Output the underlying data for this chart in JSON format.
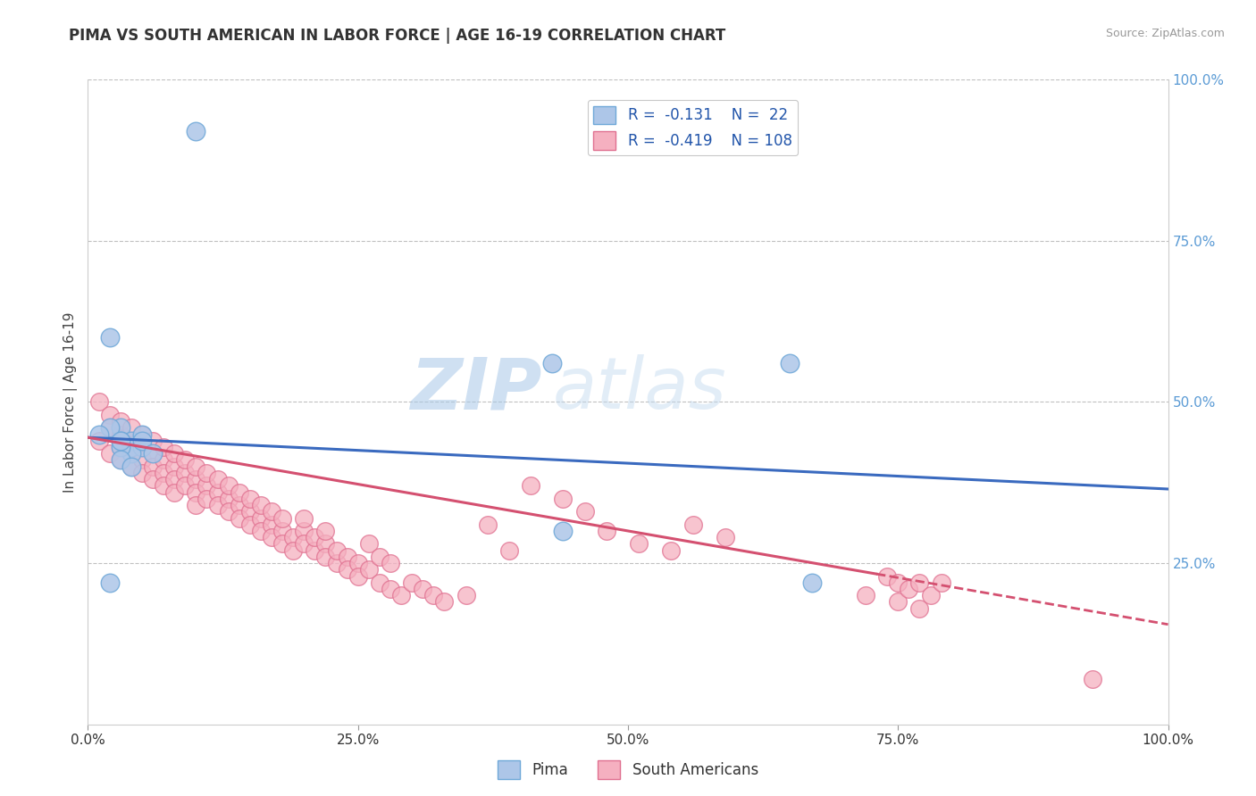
{
  "title": "PIMA VS SOUTH AMERICAN IN LABOR FORCE | AGE 16-19 CORRELATION CHART",
  "source_text": "Source: ZipAtlas.com",
  "ylabel": "In Labor Force | Age 16-19",
  "xlim": [
    0,
    1
  ],
  "ylim": [
    0,
    1
  ],
  "x_ticks": [
    0,
    0.25,
    0.5,
    0.75,
    1.0
  ],
  "x_tick_labels": [
    "0.0%",
    "25.0%",
    "50.0%",
    "75.0%",
    "100.0%"
  ],
  "y_ticks": [
    0.25,
    0.5,
    0.75,
    1.0
  ],
  "y_tick_labels": [
    "25.0%",
    "50.0%",
    "75.0%",
    "100.0%"
  ],
  "pima_color": "#adc6e8",
  "pima_edge_color": "#6fa8d8",
  "south_color": "#f5b0c0",
  "south_edge_color": "#e07090",
  "trend_pima_color": "#3a6abf",
  "trend_south_color": "#d45070",
  "pima_R": -0.131,
  "pima_N": 22,
  "south_R": -0.419,
  "south_N": 108,
  "pima_x": [
    0.1,
    0.02,
    0.03,
    0.04,
    0.05,
    0.03,
    0.04,
    0.05,
    0.04,
    0.03,
    0.05,
    0.06,
    0.03,
    0.04,
    0.02,
    0.43,
    0.44,
    0.65,
    0.67,
    0.02,
    0.03,
    0.01
  ],
  "pima_y": [
    0.92,
    0.6,
    0.46,
    0.44,
    0.45,
    0.44,
    0.43,
    0.43,
    0.42,
    0.43,
    0.44,
    0.42,
    0.41,
    0.4,
    0.22,
    0.56,
    0.3,
    0.56,
    0.22,
    0.46,
    0.44,
    0.45
  ],
  "south_x": [
    0.01,
    0.01,
    0.02,
    0.02,
    0.02,
    0.03,
    0.03,
    0.03,
    0.03,
    0.04,
    0.04,
    0.04,
    0.04,
    0.05,
    0.05,
    0.05,
    0.05,
    0.06,
    0.06,
    0.06,
    0.06,
    0.07,
    0.07,
    0.07,
    0.07,
    0.08,
    0.08,
    0.08,
    0.08,
    0.09,
    0.09,
    0.09,
    0.1,
    0.1,
    0.1,
    0.1,
    0.11,
    0.11,
    0.11,
    0.12,
    0.12,
    0.12,
    0.13,
    0.13,
    0.13,
    0.14,
    0.14,
    0.14,
    0.15,
    0.15,
    0.15,
    0.16,
    0.16,
    0.16,
    0.17,
    0.17,
    0.17,
    0.18,
    0.18,
    0.18,
    0.19,
    0.19,
    0.2,
    0.2,
    0.2,
    0.21,
    0.21,
    0.22,
    0.22,
    0.22,
    0.23,
    0.23,
    0.24,
    0.24,
    0.25,
    0.25,
    0.26,
    0.26,
    0.27,
    0.27,
    0.28,
    0.28,
    0.29,
    0.3,
    0.31,
    0.32,
    0.33,
    0.35,
    0.37,
    0.39,
    0.41,
    0.44,
    0.46,
    0.48,
    0.51,
    0.54,
    0.56,
    0.59,
    0.72,
    0.74,
    0.75,
    0.75,
    0.76,
    0.77,
    0.77,
    0.78,
    0.79,
    0.93
  ],
  "south_y": [
    0.5,
    0.44,
    0.48,
    0.42,
    0.46,
    0.45,
    0.43,
    0.41,
    0.47,
    0.44,
    0.42,
    0.4,
    0.46,
    0.43,
    0.41,
    0.39,
    0.45,
    0.42,
    0.4,
    0.44,
    0.38,
    0.41,
    0.39,
    0.43,
    0.37,
    0.4,
    0.38,
    0.42,
    0.36,
    0.39,
    0.37,
    0.41,
    0.38,
    0.36,
    0.4,
    0.34,
    0.37,
    0.35,
    0.39,
    0.36,
    0.34,
    0.38,
    0.35,
    0.33,
    0.37,
    0.34,
    0.32,
    0.36,
    0.33,
    0.31,
    0.35,
    0.32,
    0.3,
    0.34,
    0.31,
    0.29,
    0.33,
    0.3,
    0.28,
    0.32,
    0.29,
    0.27,
    0.3,
    0.28,
    0.32,
    0.27,
    0.29,
    0.28,
    0.26,
    0.3,
    0.25,
    0.27,
    0.26,
    0.24,
    0.25,
    0.23,
    0.24,
    0.28,
    0.22,
    0.26,
    0.21,
    0.25,
    0.2,
    0.22,
    0.21,
    0.2,
    0.19,
    0.2,
    0.31,
    0.27,
    0.37,
    0.35,
    0.33,
    0.3,
    0.28,
    0.27,
    0.31,
    0.29,
    0.2,
    0.23,
    0.22,
    0.19,
    0.21,
    0.22,
    0.18,
    0.2,
    0.22,
    0.07
  ],
  "trend_pima_x0": 0.0,
  "trend_pima_y0": 0.445,
  "trend_pima_x1": 1.0,
  "trend_pima_y1": 0.365,
  "trend_south_x0": 0.0,
  "trend_south_y0": 0.445,
  "trend_south_x1": 1.0,
  "trend_south_y1": 0.155,
  "trend_south_solid_end": 0.73,
  "watermark_zip_color": "#a8c8e8",
  "watermark_atlas_color": "#c0d8ef"
}
